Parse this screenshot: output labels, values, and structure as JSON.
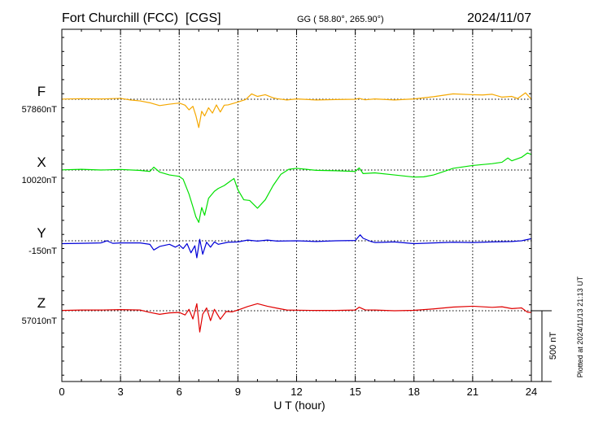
{
  "header": {
    "station": "Fort Churchill (FCC)  [CGS]",
    "coords": "GG ( 58.80°, 265.90°)",
    "date": "2024/11/07"
  },
  "footer": {
    "plotted": "Plotted at 2024/11/13 21:13 UT"
  },
  "chart_data": {
    "type": "line",
    "xlabel": "U T (hour)",
    "xlim": [
      0,
      24
    ],
    "xticks": [
      0,
      3,
      6,
      9,
      12,
      15,
      18,
      21,
      24
    ],
    "scale_bar": {
      "label": "500 nT",
      "value_nT": 500
    },
    "series": [
      {
        "name": "F",
        "baseline_label": "57860nT",
        "baseline_nT": 57860,
        "color": "#f5a800",
        "points": [
          [
            0,
            57861
          ],
          [
            1,
            57864
          ],
          [
            2,
            57862
          ],
          [
            3,
            57866
          ],
          [
            3.5,
            57855
          ],
          [
            4,
            57848
          ],
          [
            4.5,
            57835
          ],
          [
            5,
            57815
          ],
          [
            5.5,
            57825
          ],
          [
            6,
            57833
          ],
          [
            6.3,
            57818
          ],
          [
            6.5,
            57785
          ],
          [
            6.7,
            57810
          ],
          [
            6.85,
            57745
          ],
          [
            7.0,
            57660
          ],
          [
            7.15,
            57775
          ],
          [
            7.3,
            57742
          ],
          [
            7.5,
            57800
          ],
          [
            7.7,
            57762
          ],
          [
            7.9,
            57820
          ],
          [
            8.1,
            57770
          ],
          [
            8.3,
            57818
          ],
          [
            8.5,
            57820
          ],
          [
            9,
            57840
          ],
          [
            9.4,
            57858
          ],
          [
            9.7,
            57898
          ],
          [
            10,
            57880
          ],
          [
            10.4,
            57892
          ],
          [
            10.8,
            57870
          ],
          [
            11,
            57864
          ],
          [
            11.5,
            57855
          ],
          [
            12,
            57862
          ],
          [
            13,
            57855
          ],
          [
            14,
            57858
          ],
          [
            15,
            57860
          ],
          [
            15.2,
            57866
          ],
          [
            15.5,
            57856
          ],
          [
            16,
            57862
          ],
          [
            17,
            57855
          ],
          [
            18,
            57862
          ],
          [
            19,
            57878
          ],
          [
            20,
            57898
          ],
          [
            21,
            57892
          ],
          [
            21.5,
            57890
          ],
          [
            22,
            57895
          ],
          [
            22.5,
            57875
          ],
          [
            23,
            57880
          ],
          [
            23.3,
            57865
          ],
          [
            23.7,
            57905
          ],
          [
            24,
            57860
          ]
        ]
      },
      {
        "name": "X",
        "baseline_label": "10020nT",
        "baseline_nT": 10020,
        "color": "#00e000",
        "points": [
          [
            0,
            10021
          ],
          [
            1,
            10025
          ],
          [
            2,
            10020
          ],
          [
            3,
            10024
          ],
          [
            4,
            10017
          ],
          [
            4.5,
            10010
          ],
          [
            4.7,
            10040
          ],
          [
            5,
            10005
          ],
          [
            5.5,
            9985
          ],
          [
            6,
            9975
          ],
          [
            6.2,
            9955
          ],
          [
            6.5,
            9850
          ],
          [
            6.7,
            9760
          ],
          [
            6.85,
            9690
          ],
          [
            7.0,
            9650
          ],
          [
            7.15,
            9755
          ],
          [
            7.3,
            9700
          ],
          [
            7.5,
            9820
          ],
          [
            7.8,
            9870
          ],
          [
            8,
            9890
          ],
          [
            8.3,
            9910
          ],
          [
            8.6,
            9940
          ],
          [
            8.8,
            9960
          ],
          [
            9,
            9880
          ],
          [
            9.3,
            9810
          ],
          [
            9.6,
            9805
          ],
          [
            10,
            9750
          ],
          [
            10.4,
            9810
          ],
          [
            10.8,
            9910
          ],
          [
            11.2,
            9990
          ],
          [
            11.6,
            10025
          ],
          [
            12,
            10032
          ],
          [
            12.5,
            10025
          ],
          [
            13,
            10018
          ],
          [
            14,
            10015
          ],
          [
            15,
            10010
          ],
          [
            15.2,
            10035
          ],
          [
            15.4,
            9995
          ],
          [
            16,
            10000
          ],
          [
            17,
            9985
          ],
          [
            18,
            9970
          ],
          [
            18.5,
            9972
          ],
          [
            19,
            9985
          ],
          [
            19.5,
            10008
          ],
          [
            20,
            10032
          ],
          [
            21,
            10052
          ],
          [
            22,
            10065
          ],
          [
            22.5,
            10075
          ],
          [
            22.8,
            10105
          ],
          [
            23,
            10085
          ],
          [
            23.5,
            10110
          ],
          [
            23.8,
            10140
          ],
          [
            24,
            10130
          ]
        ]
      },
      {
        "name": "Y",
        "baseline_label": "-150nT",
        "baseline_nT": -150,
        "color": "#0000d8",
        "points": [
          [
            0,
            -170
          ],
          [
            1,
            -168
          ],
          [
            2,
            -165
          ],
          [
            2.3,
            -150
          ],
          [
            2.6,
            -168
          ],
          [
            3,
            -165
          ],
          [
            4,
            -165
          ],
          [
            4.5,
            -175
          ],
          [
            4.7,
            -215
          ],
          [
            5,
            -190
          ],
          [
            5.5,
            -175
          ],
          [
            5.8,
            -195
          ],
          [
            6,
            -180
          ],
          [
            6.2,
            -205
          ],
          [
            6.4,
            -170
          ],
          [
            6.6,
            -235
          ],
          [
            6.8,
            -185
          ],
          [
            6.9,
            -270
          ],
          [
            7.05,
            -140
          ],
          [
            7.2,
            -245
          ],
          [
            7.4,
            -160
          ],
          [
            7.6,
            -195
          ],
          [
            7.8,
            -158
          ],
          [
            8,
            -175
          ],
          [
            8.5,
            -160
          ],
          [
            9,
            -158
          ],
          [
            9.5,
            -145
          ],
          [
            10,
            -152
          ],
          [
            10.5,
            -145
          ],
          [
            11,
            -152
          ],
          [
            12,
            -150
          ],
          [
            13,
            -155
          ],
          [
            14,
            -150
          ],
          [
            15,
            -148
          ],
          [
            15.25,
            -108
          ],
          [
            15.4,
            -132
          ],
          [
            15.8,
            -155
          ],
          [
            16,
            -162
          ],
          [
            17,
            -158
          ],
          [
            18,
            -170
          ],
          [
            19,
            -165
          ],
          [
            20,
            -160
          ],
          [
            21,
            -162
          ],
          [
            22,
            -158
          ],
          [
            23,
            -155
          ],
          [
            23.5,
            -150
          ],
          [
            24,
            -135
          ]
        ]
      },
      {
        "name": "Z",
        "baseline_label": "57010nT",
        "baseline_nT": 57010,
        "color": "#e00000",
        "points": [
          [
            0,
            57012
          ],
          [
            1,
            57015
          ],
          [
            2,
            57015
          ],
          [
            3,
            57018
          ],
          [
            4,
            57015
          ],
          [
            4.5,
            56998
          ],
          [
            5,
            56985
          ],
          [
            5.5,
            56995
          ],
          [
            6,
            56998
          ],
          [
            6.3,
            56980
          ],
          [
            6.5,
            57020
          ],
          [
            6.7,
            56952
          ],
          [
            6.9,
            57060
          ],
          [
            7.05,
            56860
          ],
          [
            7.2,
            56985
          ],
          [
            7.4,
            57030
          ],
          [
            7.6,
            56940
          ],
          [
            7.8,
            57020
          ],
          [
            8.1,
            56950
          ],
          [
            8.4,
            57005
          ],
          [
            8.7,
            57002
          ],
          [
            9,
            57015
          ],
          [
            9.5,
            57040
          ],
          [
            10,
            57060
          ],
          [
            10.5,
            57042
          ],
          [
            11,
            57028
          ],
          [
            11.5,
            57015
          ],
          [
            12,
            57014
          ],
          [
            13,
            57012
          ],
          [
            14,
            57012
          ],
          [
            15,
            57015
          ],
          [
            15.2,
            57035
          ],
          [
            15.5,
            57016
          ],
          [
            16,
            57015
          ],
          [
            17,
            57010
          ],
          [
            18,
            57013
          ],
          [
            19,
            57023
          ],
          [
            20,
            57036
          ],
          [
            21,
            57042
          ],
          [
            22,
            57034
          ],
          [
            22.5,
            57038
          ],
          [
            23,
            57025
          ],
          [
            23.5,
            57030
          ],
          [
            23.8,
            57000
          ],
          [
            24,
            56998
          ]
        ]
      }
    ]
  }
}
